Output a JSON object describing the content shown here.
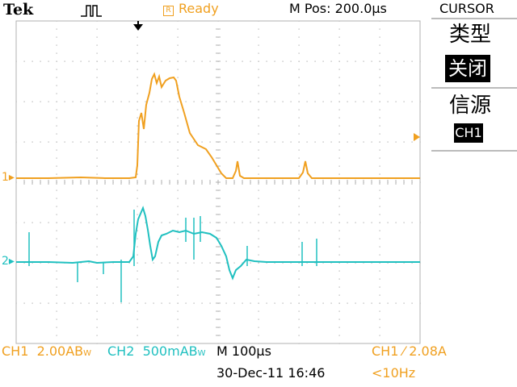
{
  "header": {
    "brand": "Tek",
    "status": "Ready",
    "status_icon": "R",
    "horizontal_position": "M Pos: 200.0µs",
    "menu_title": "CURSOR"
  },
  "side_menu": {
    "type_label": "类型",
    "type_value": "关闭",
    "source_label": "信源",
    "source_value": "CH1"
  },
  "channels": {
    "ch1": {
      "marker": "1",
      "name": "CH1",
      "scale": "2.00A",
      "suffix": "B",
      "suffix_sub": "W",
      "color": "#f0a020"
    },
    "ch2": {
      "marker": "2",
      "name": "CH2",
      "scale": "500mA",
      "suffix": "B",
      "suffix_sub": "W",
      "color": "#20c0c0"
    }
  },
  "timebase": "M 100µs",
  "trigger": {
    "channel": "CH1",
    "slope_icon": "rising-edge-icon",
    "level": "2.08A"
  },
  "datetime": "30-Dec-11 16:46",
  "frequency": "<10Hz",
  "colors": {
    "ch1": "#f0a020",
    "ch2": "#20c0c0",
    "grid": "#b0b0b0"
  }
}
